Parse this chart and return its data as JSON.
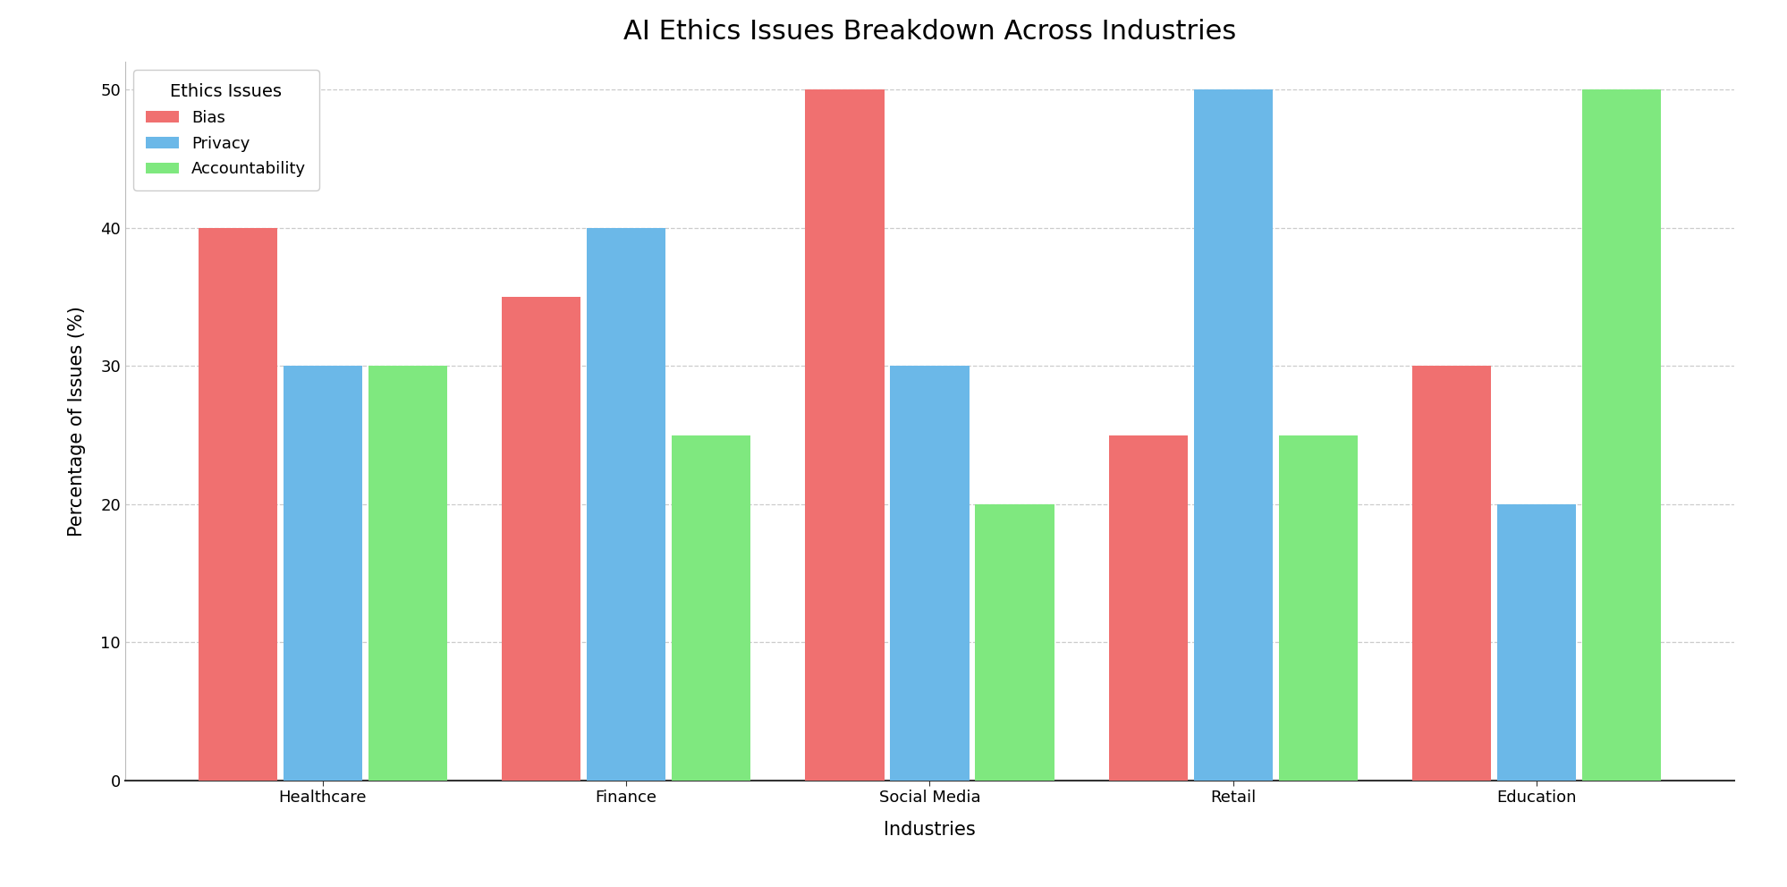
{
  "title": "AI Ethics Issues Breakdown Across Industries",
  "xlabel": "Industries",
  "ylabel": "Percentage of Issues (%)",
  "legend_title": "Ethics Issues",
  "categories": [
    "Healthcare",
    "Finance",
    "Social Media",
    "Retail",
    "Education"
  ],
  "series": [
    {
      "name": "Bias",
      "values": [
        40,
        35,
        50,
        25,
        30
      ],
      "color": "#F07070"
    },
    {
      "name": "Privacy",
      "values": [
        30,
        40,
        30,
        50,
        20
      ],
      "color": "#6BB8E8"
    },
    {
      "name": "Accountability",
      "values": [
        30,
        25,
        20,
        25,
        50
      ],
      "color": "#7FE87F"
    }
  ],
  "ylim": [
    0,
    52
  ],
  "yticks": [
    0,
    10,
    20,
    30,
    40,
    50
  ],
  "bar_width": 0.26,
  "bar_gap": 0.02,
  "background_color": "#ffffff",
  "grid_color": "#cccccc",
  "title_fontsize": 22,
  "axis_label_fontsize": 15,
  "tick_fontsize": 13,
  "legend_fontsize": 13,
  "legend_title_fontsize": 14
}
